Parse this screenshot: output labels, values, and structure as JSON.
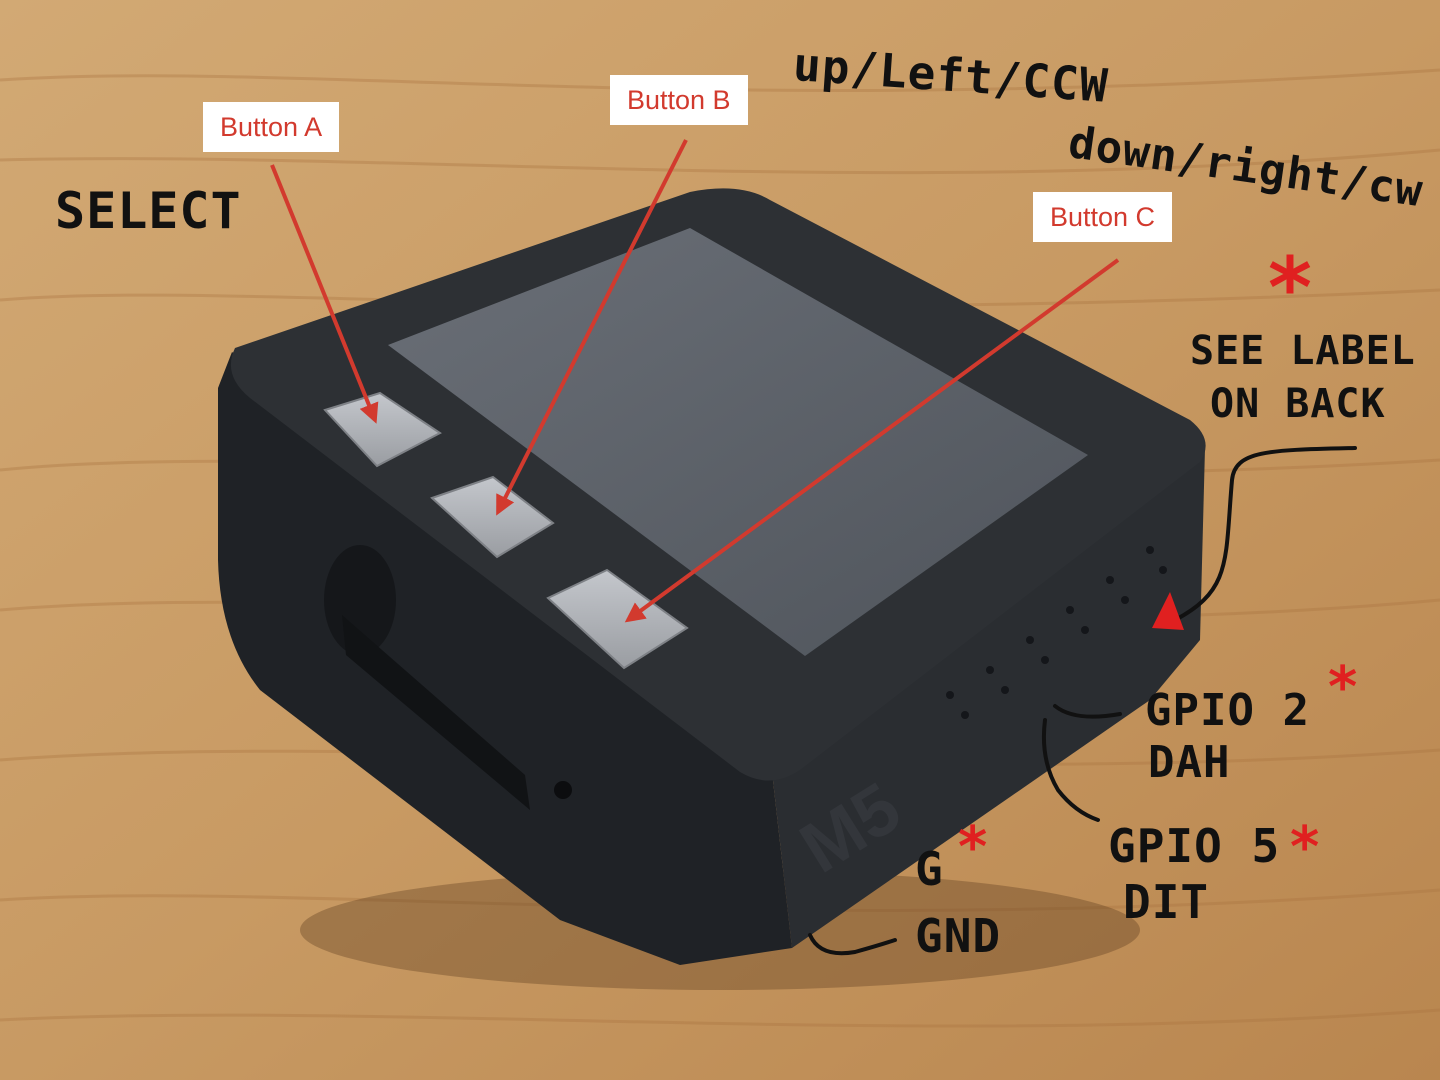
{
  "callouts": {
    "button_a": "Button A",
    "button_b": "Button B",
    "button_c": "Button C"
  },
  "handwriting": {
    "select": "SELECT",
    "up_left_ccw": "up/Left/CCW",
    "down_right_cw": "down/right/cw",
    "see_label_on_back": [
      "SEE LABEL",
      "ON BACK"
    ],
    "gpio2": [
      "GPIO 2",
      "DAH"
    ],
    "gpio5": [
      "GPIO 5",
      "DIT"
    ],
    "g": "G",
    "gnd": "GND"
  },
  "device": {
    "logo_text": "M5"
  },
  "marks": {
    "asterisk": "*"
  },
  "colors": {
    "annotation_red": "#d23a2e",
    "ink": "#111111",
    "device_body": "#24272b",
    "screen": "#5b6068",
    "buttons": "#aeb1b6",
    "wood": "#c89a63"
  }
}
